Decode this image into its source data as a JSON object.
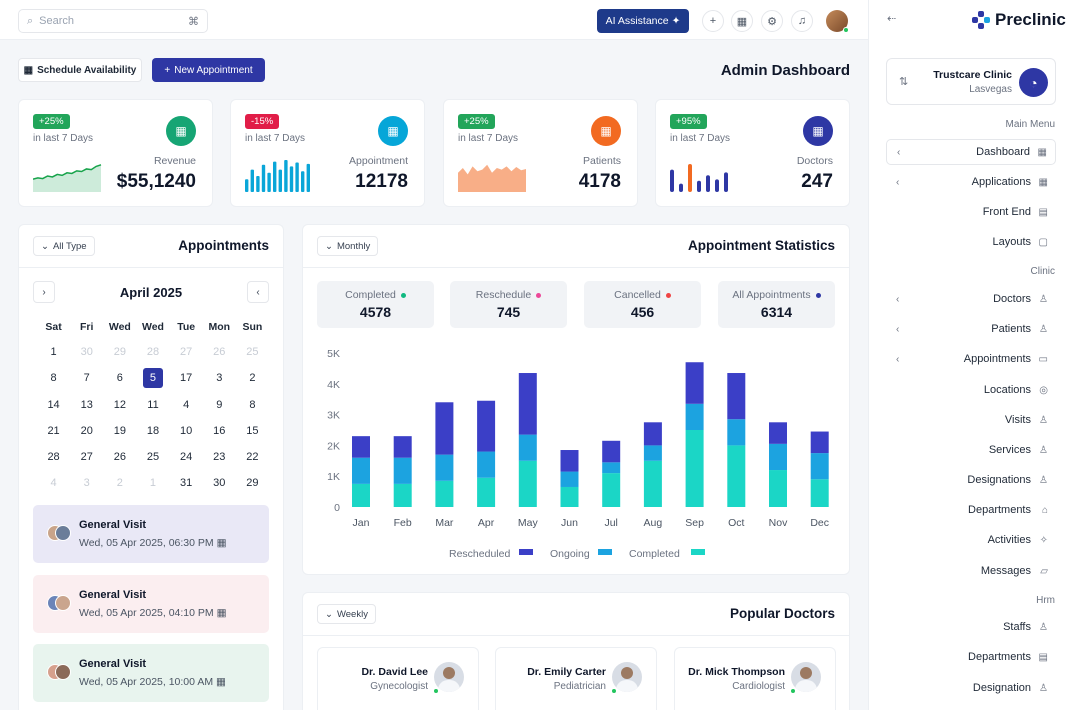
{
  "topbar": {
    "search_placeholder": "Search",
    "search_shortcut": "⌘",
    "ai_label": "AI Assistance"
  },
  "header": {
    "schedule_label": "Schedule Availability",
    "new_appt_label": "New Appointment",
    "title": "Admin Dashboard"
  },
  "stats": [
    {
      "badge": "+25%",
      "badge_color": "#22a55a",
      "period": "in last 7 Days",
      "label": "Revenue",
      "value": "$55,1240",
      "icon_color": "#16a574",
      "trend": [
        40,
        44,
        42,
        50,
        47,
        55,
        52,
        60,
        58,
        66,
        64,
        72,
        70,
        80,
        85
      ]
    },
    {
      "badge": "-15%",
      "badge_color": "#e11d48",
      "period": "in last 7 Days",
      "label": "Appointment",
      "value": "12178",
      "icon_color": "#06a6d8",
      "bars": [
        40,
        70,
        50,
        85,
        60,
        95,
        70,
        100,
        80,
        92,
        65,
        88
      ]
    },
    {
      "badge": "+25%",
      "badge_color": "#22a55a",
      "period": "in last 7 Days",
      "label": "Patients",
      "value": "4178",
      "icon_color": "#f26a21",
      "trend": [
        60,
        75,
        55,
        80,
        65,
        70,
        85,
        60,
        75,
        70,
        80,
        65,
        78,
        68,
        72
      ]
    },
    {
      "badge": "+95%",
      "badge_color": "#22a55a",
      "period": "in last 7 Days",
      "label": "Doctors",
      "value": "247",
      "icon_color": "#2e37a4",
      "dots": [
        80,
        30,
        100,
        40,
        60,
        45,
        70
      ]
    }
  ],
  "appointments": {
    "title": "Appointments",
    "filter": "All Type",
    "month": "April 2025",
    "days": [
      "Sat",
      "Fri",
      "Wed",
      "Wed",
      "Tue",
      "Mon",
      "Sun"
    ],
    "dates": [
      [
        "1",
        "30",
        "29",
        "28",
        "27",
        "26",
        "25"
      ],
      [
        "8",
        "7",
        "6",
        "5",
        "17",
        "3",
        "2"
      ],
      [
        "14",
        "13",
        "12",
        "11",
        "4",
        "9",
        "8"
      ],
      [
        "21",
        "20",
        "19",
        "18",
        "10",
        "16",
        "15"
      ],
      [
        "28",
        "27",
        "26",
        "25",
        "24",
        "23",
        "22"
      ],
      [
        "4",
        "3",
        "2",
        "1",
        "31",
        "30",
        "29"
      ]
    ],
    "muted": [
      [
        1,
        2,
        3,
        4,
        5,
        6
      ],
      [],
      [],
      [],
      [],
      [
        0,
        1,
        2,
        3
      ]
    ],
    "selected": [
      1,
      3
    ],
    "visits": [
      {
        "title": "General Visit",
        "time": "Wed, 05 Apr 2025, 06:30 PM",
        "bg": "#e9e8f6"
      },
      {
        "title": "General Visit",
        "time": "Wed, 05 Apr 2025, 04:10 PM",
        "bg": "#fbeef0"
      },
      {
        "title": "General Visit",
        "time": "Wed, 05 Apr 2025, 10:00 AM",
        "bg": "#e8f4ee"
      }
    ]
  },
  "statistics": {
    "title": "Appointment Statistics",
    "filter": "Monthly",
    "boxes": [
      {
        "label": "Completed",
        "value": "4578",
        "dot": "#10b981"
      },
      {
        "label": "Reschedule",
        "value": "745",
        "dot": "#ec4899"
      },
      {
        "label": "Cancelled",
        "value": "456",
        "dot": "#ef4444"
      },
      {
        "label": "All Appointments",
        "value": "6314",
        "dot": "#2e37a4"
      }
    ]
  },
  "chart_data": {
    "type": "bar",
    "stacked": true,
    "categories": [
      "Jan",
      "Feb",
      "Mar",
      "Apr",
      "May",
      "Jun",
      "Jul",
      "Aug",
      "Sep",
      "Oct",
      "Nov",
      "Dec"
    ],
    "yticks": [
      "0",
      "1K",
      "2K",
      "3K",
      "4K",
      "5K"
    ],
    "ylim": [
      0,
      5000
    ],
    "series": [
      {
        "name": "Completed",
        "color": "#1bd6c6",
        "values": [
          750,
          750,
          850,
          950,
          1500,
          650,
          1100,
          1500,
          2500,
          2000,
          1200,
          900
        ]
      },
      {
        "name": "Ongoing",
        "color": "#1ca3e0",
        "values": [
          850,
          850,
          850,
          850,
          850,
          500,
          350,
          500,
          850,
          850,
          850,
          850
        ]
      },
      {
        "name": "Rescheduled",
        "color": "#3b3fc7",
        "values": [
          700,
          700,
          1700,
          1650,
          2000,
          700,
          700,
          750,
          1350,
          1500,
          700,
          700
        ]
      }
    ],
    "legend": [
      {
        "name": "Rescheduled",
        "color": "#3b3fc7"
      },
      {
        "name": "Ongoing",
        "color": "#1ca3e0"
      },
      {
        "name": "Completed",
        "color": "#1bd6c6"
      }
    ]
  },
  "popular": {
    "title": "Popular Doctors",
    "filter": "Weekly",
    "doctors": [
      {
        "name": "Dr. David Lee",
        "spec": "Gynecologist"
      },
      {
        "name": "Dr. Emily Carter",
        "spec": "Pediatrician"
      },
      {
        "name": "Dr. Mick Thompson",
        "spec": "Cardiologist"
      }
    ]
  },
  "sidebar": {
    "brand": "Preclinic",
    "clinic_name": "Trustcare Clinic",
    "clinic_location": "Lasvegas",
    "sections": [
      {
        "label": "Main Menu",
        "top": 119
      },
      {
        "label": "Clinic",
        "top": 266
      },
      {
        "label": "Hrm",
        "top": 595
      }
    ],
    "items": [
      {
        "label": "Dashboard",
        "chev": true,
        "icon": "▦",
        "active": true
      },
      {
        "label": "Applications",
        "chev": true,
        "icon": "▦"
      },
      {
        "label": "Front End",
        "chev": false,
        "icon": "▤"
      },
      {
        "label": "Layouts",
        "chev": false,
        "icon": "▢"
      },
      {
        "label": "Doctors",
        "chev": true,
        "icon": "♙"
      },
      {
        "label": "Patients",
        "chev": true,
        "icon": "♙"
      },
      {
        "label": "Appointments",
        "chev": true,
        "icon": "▭"
      },
      {
        "label": "Locations",
        "chev": false,
        "icon": "◎"
      },
      {
        "label": "Visits",
        "chev": false,
        "icon": "♙"
      },
      {
        "label": "Services",
        "chev": false,
        "icon": "♙"
      },
      {
        "label": "Designations",
        "chev": false,
        "icon": "♙"
      },
      {
        "label": "Departments",
        "chev": false,
        "icon": "⌂"
      },
      {
        "label": "Activities",
        "chev": false,
        "icon": "✧"
      },
      {
        "label": "Messages",
        "chev": false,
        "icon": "▱"
      },
      {
        "label": "Staffs",
        "chev": false,
        "icon": "♙"
      },
      {
        "label": "Departments",
        "chev": false,
        "icon": "▤"
      },
      {
        "label": "Designation",
        "chev": false,
        "icon": "♙"
      }
    ]
  }
}
